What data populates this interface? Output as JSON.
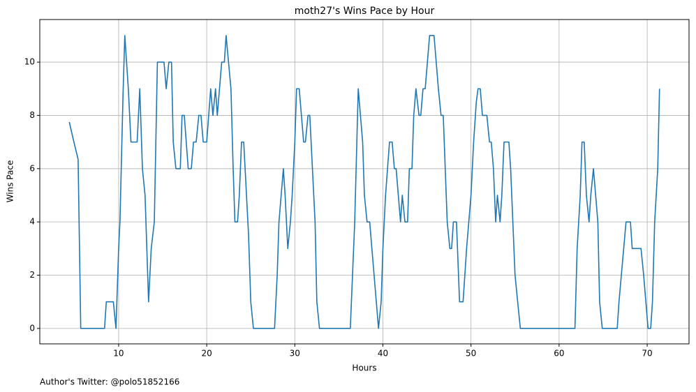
{
  "chart_data": {
    "type": "line",
    "title": "moth27's Wins Pace by Hour",
    "x_label": "Hours",
    "y_label": "Wins Pace",
    "footnote": "Author's Twitter: @polo51852166",
    "grid": true,
    "xlim": [
      1.05,
      74.75
    ],
    "ylim": [
      -0.58,
      11.6
    ],
    "xticks": [
      10,
      20,
      30,
      40,
      50,
      60,
      70
    ],
    "yticks": [
      0,
      2,
      4,
      6,
      8,
      10
    ],
    "x": [
      4.4,
      4.85,
      5.4,
      5.7,
      8.4,
      8.6,
      9.4,
      9.7,
      10.0,
      10.15,
      10.5,
      10.7,
      11.1,
      11.4,
      12.1,
      12.4,
      12.7,
      13.0,
      13.4,
      13.7,
      14.05,
      14.4,
      15.15,
      15.4,
      15.7,
      16.0,
      16.2,
      16.5,
      17.0,
      17.2,
      17.45,
      17.9,
      18.25,
      18.5,
      18.8,
      19.1,
      19.35,
      19.6,
      20.0,
      20.45,
      20.7,
      21.0,
      21.2,
      21.7,
      22.0,
      22.2,
      22.75,
      23.0,
      23.2,
      23.5,
      23.7,
      23.95,
      24.2,
      24.75,
      25.0,
      25.3,
      27.7,
      28.0,
      28.2,
      28.7,
      28.9,
      29.2,
      29.5,
      29.7,
      30.0,
      30.2,
      30.5,
      31.0,
      31.2,
      31.5,
      31.7,
      32.3,
      32.5,
      32.8,
      36.3,
      36.8,
      37.2,
      37.7,
      37.9,
      38.2,
      38.5,
      39.0,
      39.5,
      39.8,
      40.0,
      40.3,
      40.75,
      41.05,
      41.3,
      41.5,
      42.0,
      42.2,
      42.5,
      42.8,
      43.0,
      43.3,
      43.5,
      43.75,
      44.1,
      44.3,
      44.55,
      44.8,
      45.3,
      45.8,
      46.3,
      46.6,
      46.85,
      47.3,
      47.6,
      47.8,
      48.0,
      48.35,
      48.7,
      49.1,
      49.5,
      50.0,
      50.3,
      50.6,
      50.8,
      51.05,
      51.3,
      51.8,
      52.1,
      52.3,
      52.55,
      52.8,
      53.0,
      53.3,
      53.5,
      53.75,
      54.3,
      54.5,
      55.0,
      55.6,
      61.8,
      62.05,
      62.4,
      62.6,
      62.85,
      63.1,
      63.4,
      63.6,
      63.9,
      64.4,
      64.6,
      64.9,
      66.6,
      66.8,
      67.6,
      68.1,
      68.3,
      69.3,
      69.6,
      70.1,
      70.4,
      70.6,
      70.85,
      71.2,
      71.4
    ],
    "series": [
      {
        "name": "Wins Pace",
        "color": "#1f77b4",
        "values": [
          7.75,
          7.1,
          6.35,
          0,
          0,
          1,
          1,
          0,
          3,
          4,
          8.8,
          11,
          9,
          7,
          7,
          9,
          6,
          5,
          1,
          3,
          4,
          10,
          10,
          9,
          10,
          10,
          7,
          6,
          6,
          8,
          8,
          6,
          6,
          7,
          7,
          8,
          8,
          7,
          7,
          9,
          8,
          9,
          8,
          10,
          10,
          11,
          9,
          6,
          4,
          4,
          5,
          7,
          7,
          3.5,
          1,
          0,
          0,
          2,
          4,
          6,
          5,
          3,
          4,
          5,
          7,
          9,
          9,
          7,
          7,
          8,
          8,
          4,
          1,
          0,
          0,
          4,
          9,
          7,
          5,
          4,
          4,
          2,
          0,
          1,
          3,
          5,
          7,
          7,
          6,
          6,
          4,
          5,
          4,
          4,
          6,
          6,
          8,
          9,
          8,
          8,
          9,
          9,
          11,
          11,
          9,
          8,
          8,
          4,
          3,
          3,
          4,
          4,
          1,
          1,
          3,
          5,
          7,
          8.5,
          9,
          9,
          8,
          8,
          7,
          7,
          6,
          4,
          5,
          4,
          5,
          7,
          7,
          6,
          2,
          0,
          0,
          3,
          5,
          7,
          7,
          5,
          4,
          5,
          6,
          4,
          1,
          0,
          0,
          1,
          4,
          4,
          3,
          3,
          2,
          0,
          0,
          1,
          4,
          6,
          9
        ]
      }
    ]
  }
}
